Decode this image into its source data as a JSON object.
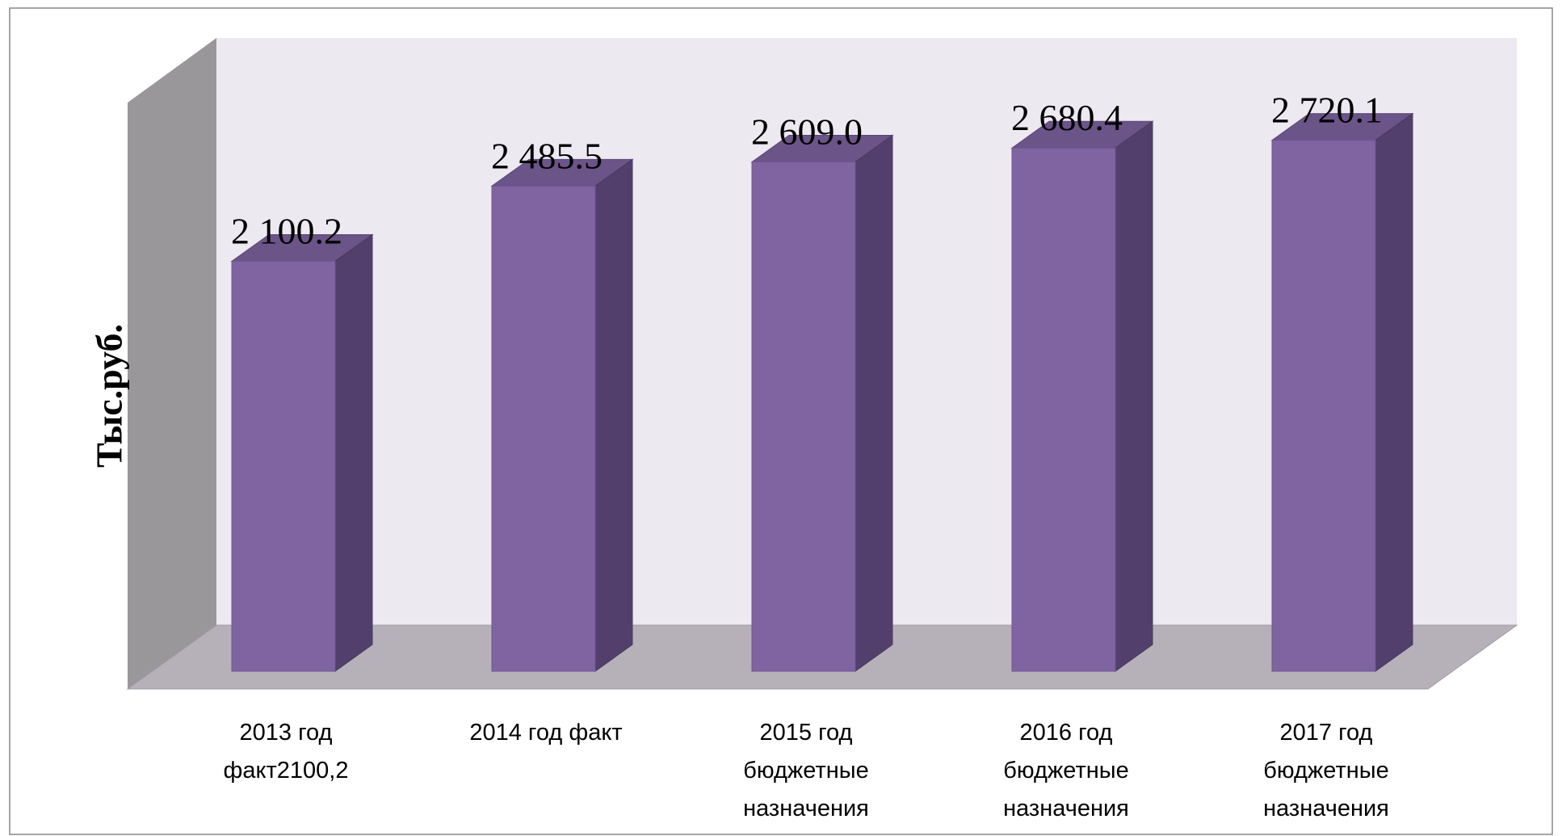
{
  "chart_data": {
    "type": "bar3d",
    "y_axis_label": "Тыс.руб.",
    "categories": [
      [
        "2013 год",
        "факт2100,2"
      ],
      [
        "2014 год факт"
      ],
      [
        "2015 год",
        "бюджетные",
        "назначения"
      ],
      [
        "2016 год",
        "бюджетные",
        "назначения"
      ],
      [
        "2017 год",
        "бюджетные",
        "назначения"
      ]
    ],
    "values": [
      2100.2,
      2485.5,
      2609.0,
      2680.4,
      2720.1
    ],
    "value_labels": [
      "2 100.2",
      "2 485.5",
      "2 609.0",
      "2 680.4",
      "2 720.1"
    ],
    "color": "#8064a2",
    "ylim": [
      0,
      3000
    ]
  }
}
